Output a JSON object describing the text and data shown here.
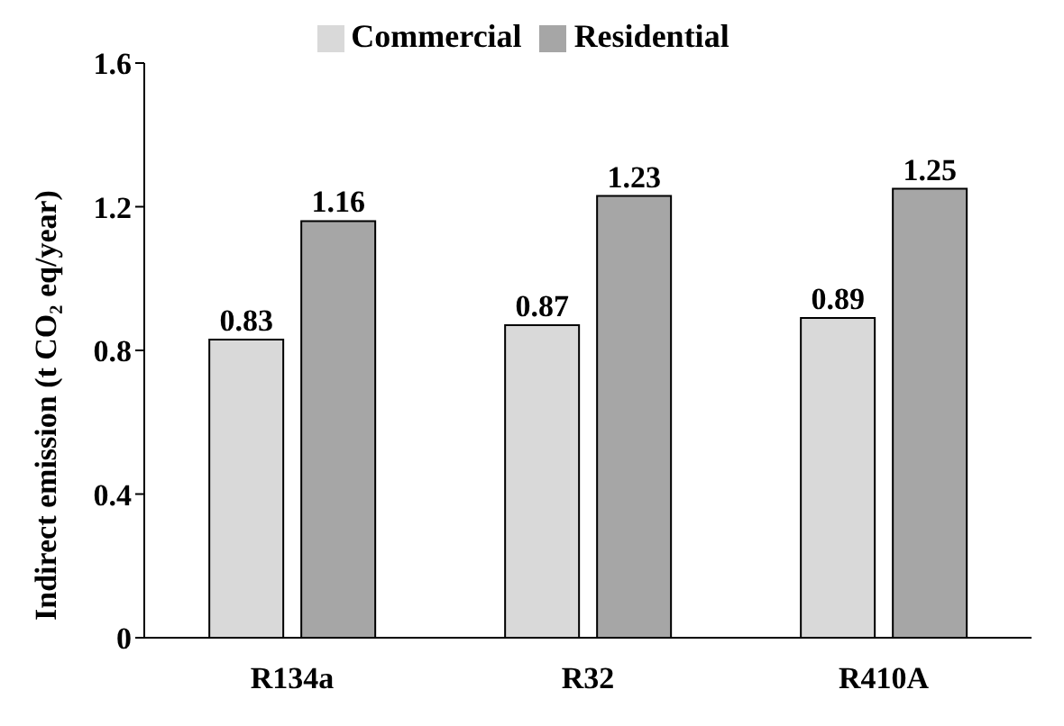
{
  "chart_data": {
    "type": "bar",
    "ylabel": "Indirect emission (t CO₂ eq/year)",
    "categories": [
      "R134a",
      "R32",
      "R410A"
    ],
    "series": [
      {
        "name": "Commercial",
        "color": "#d9d9d9",
        "values": [
          0.83,
          0.87,
          0.89
        ]
      },
      {
        "name": "Residential",
        "color": "#a6a6a6",
        "values": [
          1.16,
          1.23,
          1.25
        ]
      }
    ],
    "ylim": [
      0,
      1.6
    ],
    "yticks": [
      0,
      0.4,
      0.8,
      1.2,
      1.6
    ],
    "data_labels": true,
    "legend": "top",
    "grid": false
  }
}
